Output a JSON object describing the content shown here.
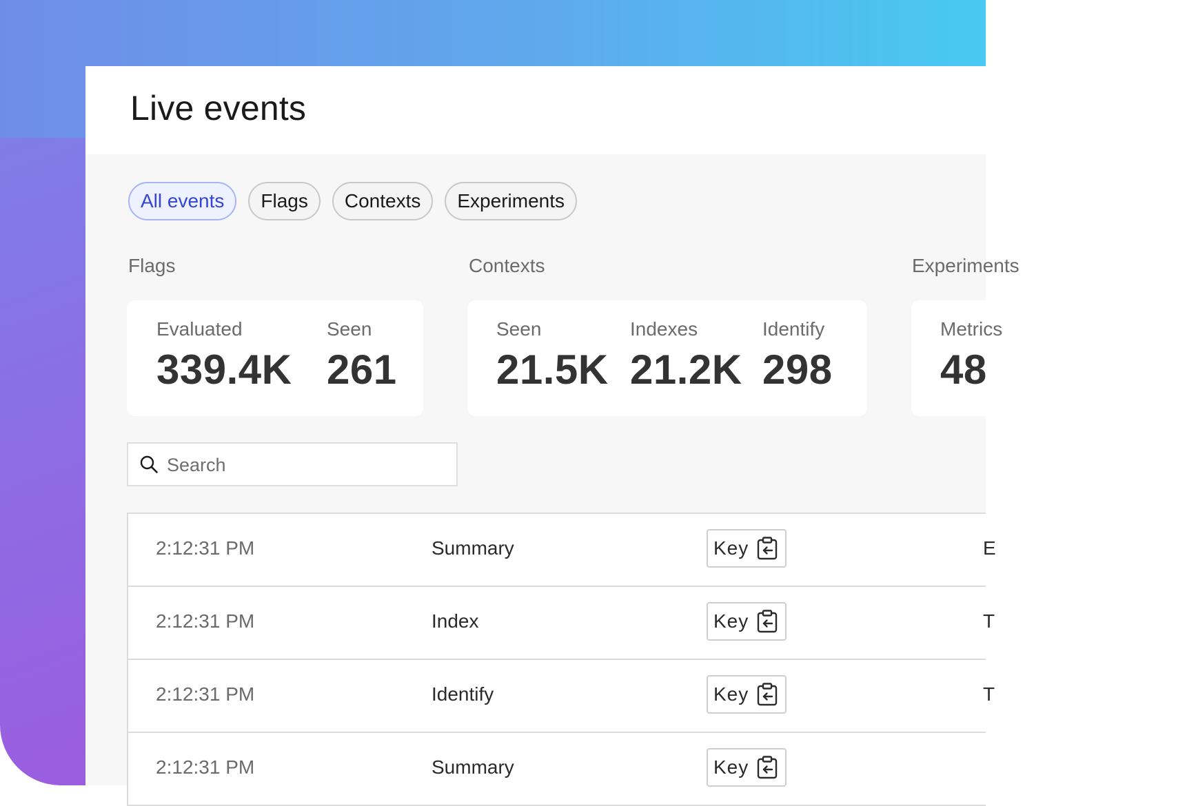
{
  "page": {
    "title": "Live events"
  },
  "tabs": [
    {
      "label": "All events",
      "active": true
    },
    {
      "label": "Flags",
      "active": false
    },
    {
      "label": "Contexts",
      "active": false
    },
    {
      "label": "Experiments",
      "active": false
    }
  ],
  "sections": {
    "flags": {
      "label": "Flags",
      "metrics": [
        {
          "label": "Evaluated",
          "value": "339.4K"
        },
        {
          "label": "Seen",
          "value": "261"
        }
      ]
    },
    "contexts": {
      "label": "Contexts",
      "metrics": [
        {
          "label": "Seen",
          "value": "21.5K"
        },
        {
          "label": "Indexes",
          "value": "21.2K"
        },
        {
          "label": "Identify",
          "value": "298"
        }
      ]
    },
    "experiments": {
      "label": "Experiments",
      "metrics": [
        {
          "label": "Metrics",
          "value": "48"
        }
      ]
    }
  },
  "search": {
    "placeholder": "Search"
  },
  "table": {
    "rows": [
      {
        "time": "2:12:31 PM",
        "type": "Summary",
        "key_label": "Key",
        "extra": "E"
      },
      {
        "time": "2:12:31 PM",
        "type": "Index",
        "key_label": "Key",
        "extra": "T"
      },
      {
        "time": "2:12:31 PM",
        "type": "Identify",
        "key_label": "Key",
        "extra": "T"
      },
      {
        "time": "2:12:31 PM",
        "type": "Summary",
        "key_label": "Key",
        "extra": ""
      }
    ]
  },
  "colors": {
    "accent": "#3346d3",
    "tab_active_bg": "#eef1ff",
    "tab_active_border": "#a8b5f5"
  }
}
